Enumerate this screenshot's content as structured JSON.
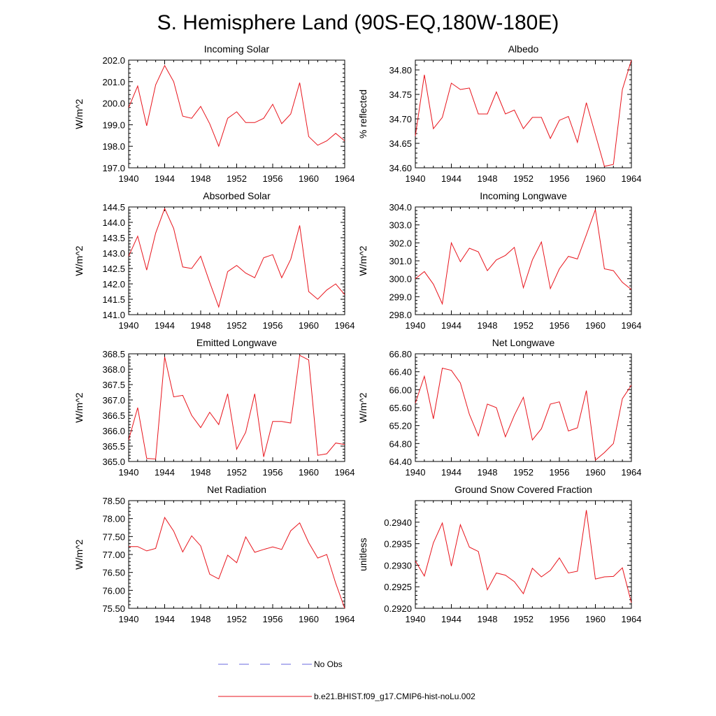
{
  "figure": {
    "title": "S. Hemisphere Land (90S-EQ,180W-180E)"
  },
  "colors": {
    "model_line": "#e8141c",
    "obs_line": "#6a6adf",
    "axis": "#000000"
  },
  "legend": {
    "obs_label": "No Obs",
    "model_label": "b.e21.BHIST.f09_g17.CMIP6-hist-noLu.002"
  },
  "chart_data": [
    {
      "type": "line",
      "title": "Incoming Solar",
      "xlabel": "",
      "ylabel": "W/m^2",
      "xlim": [
        1940,
        1964
      ],
      "ylim": [
        197.0,
        202.0
      ],
      "xticks": [
        "1940",
        "1944",
        "1948",
        "1952",
        "1956",
        "1960",
        "1964"
      ],
      "yticks": [
        "197.0",
        "198.0",
        "199.0",
        "200.0",
        "201.0",
        "202.0"
      ],
      "grid": false,
      "x": [
        1940,
        1941,
        1942,
        1943,
        1944,
        1945,
        1946,
        1947,
        1948,
        1949,
        1950,
        1951,
        1952,
        1953,
        1954,
        1955,
        1956,
        1957,
        1958,
        1959,
        1960,
        1961,
        1962,
        1963,
        1964
      ],
      "series": [
        {
          "values": [
            199.8,
            200.8,
            198.95,
            200.85,
            201.75,
            201.0,
            199.4,
            199.3,
            199.85,
            199.05,
            198.0,
            199.3,
            199.6,
            199.1,
            199.1,
            199.3,
            199.95,
            199.05,
            199.5,
            200.95,
            198.45,
            198.05,
            198.25,
            198.6,
            198.25
          ]
        }
      ]
    },
    {
      "type": "line",
      "title": "Albedo",
      "xlabel": "",
      "ylabel": "% reflected",
      "xlim": [
        1940,
        1964
      ],
      "ylim": [
        34.6,
        34.82
      ],
      "xticks": [
        "1940",
        "1944",
        "1948",
        "1952",
        "1956",
        "1960",
        "1964"
      ],
      "yticks": [
        "34.60",
        "34.65",
        "34.70",
        "34.75",
        "34.80"
      ],
      "grid": false,
      "x": [
        1940,
        1941,
        1942,
        1943,
        1944,
        1945,
        1946,
        1947,
        1948,
        1949,
        1950,
        1951,
        1952,
        1953,
        1954,
        1955,
        1956,
        1957,
        1958,
        1959,
        1960,
        1961,
        1962,
        1963,
        1964
      ],
      "series": [
        {
          "values": [
            34.665,
            34.79,
            34.68,
            34.703,
            34.773,
            34.76,
            34.763,
            34.71,
            34.71,
            34.755,
            34.71,
            34.718,
            34.68,
            34.703,
            34.703,
            34.66,
            34.697,
            34.705,
            34.652,
            34.733,
            34.668,
            34.603,
            34.607,
            34.76,
            34.82
          ]
        }
      ]
    },
    {
      "type": "line",
      "title": "Absorbed Solar",
      "xlabel": "",
      "ylabel": "W/m^2",
      "xlim": [
        1940,
        1964
      ],
      "ylim": [
        141.0,
        144.5
      ],
      "xticks": [
        "1940",
        "1944",
        "1948",
        "1952",
        "1956",
        "1960",
        "1964"
      ],
      "yticks": [
        "141.0",
        "141.5",
        "142.0",
        "142.5",
        "143.0",
        "143.5",
        "144.0",
        "144.5"
      ],
      "grid": false,
      "x": [
        1940,
        1941,
        1942,
        1943,
        1944,
        1945,
        1946,
        1947,
        1948,
        1949,
        1950,
        1951,
        1952,
        1953,
        1954,
        1955,
        1956,
        1957,
        1958,
        1959,
        1960,
        1961,
        1962,
        1963,
        1964
      ],
      "series": [
        {
          "values": [
            142.9,
            143.55,
            142.45,
            143.65,
            144.45,
            143.8,
            142.55,
            142.5,
            142.9,
            142.05,
            141.25,
            142.4,
            142.6,
            142.35,
            142.2,
            142.85,
            142.95,
            142.2,
            142.8,
            143.9,
            141.75,
            141.5,
            141.8,
            142.0,
            141.65
          ]
        }
      ]
    },
    {
      "type": "line",
      "title": "Incoming Longwave",
      "xlabel": "",
      "ylabel": "W/m^2",
      "xlim": [
        1940,
        1964
      ],
      "ylim": [
        298.0,
        304.0
      ],
      "xticks": [
        "1940",
        "1944",
        "1948",
        "1952",
        "1956",
        "1960",
        "1964"
      ],
      "yticks": [
        "298.0",
        "299.0",
        "300.0",
        "301.0",
        "302.0",
        "303.0",
        "304.0"
      ],
      "grid": false,
      "x": [
        1940,
        1941,
        1942,
        1943,
        1944,
        1945,
        1946,
        1947,
        1948,
        1949,
        1950,
        1951,
        1952,
        1953,
        1954,
        1955,
        1956,
        1957,
        1958,
        1959,
        1960,
        1961,
        1962,
        1963,
        1964
      ],
      "series": [
        {
          "values": [
            300.0,
            300.4,
            299.7,
            298.6,
            302.0,
            300.95,
            301.7,
            301.5,
            300.45,
            301.05,
            301.3,
            301.75,
            299.5,
            301.05,
            302.05,
            299.45,
            300.55,
            301.25,
            301.1,
            302.45,
            303.85,
            300.55,
            300.45,
            299.8,
            299.4
          ]
        }
      ]
    },
    {
      "type": "line",
      "title": "Emitted Longwave",
      "xlabel": "",
      "ylabel": "W/m^2",
      "xlim": [
        1940,
        1964
      ],
      "ylim": [
        365.0,
        368.5
      ],
      "xticks": [
        "1940",
        "1944",
        "1948",
        "1952",
        "1956",
        "1960",
        "1964"
      ],
      "yticks": [
        "365.0",
        "365.5",
        "366.0",
        "366.5",
        "367.0",
        "367.5",
        "368.0",
        "368.5"
      ],
      "grid": false,
      "x": [
        1940,
        1941,
        1942,
        1943,
        1944,
        1945,
        1946,
        1947,
        1948,
        1949,
        1950,
        1951,
        1952,
        1953,
        1954,
        1955,
        1956,
        1957,
        1958,
        1959,
        1960,
        1961,
        1962,
        1963,
        1964
      ],
      "series": [
        {
          "values": [
            365.7,
            366.75,
            365.1,
            365.08,
            368.4,
            367.1,
            367.15,
            366.5,
            366.1,
            366.6,
            366.2,
            367.2,
            365.4,
            365.95,
            367.2,
            365.15,
            366.3,
            366.3,
            366.25,
            368.45,
            368.3,
            365.2,
            365.25,
            365.6,
            365.55
          ]
        }
      ]
    },
    {
      "type": "line",
      "title": "Net Longwave",
      "xlabel": "",
      "ylabel": "W/m^2",
      "xlim": [
        1940,
        1964
      ],
      "ylim": [
        64.4,
        66.8
      ],
      "xticks": [
        "1940",
        "1944",
        "1948",
        "1952",
        "1956",
        "1960",
        "1964"
      ],
      "yticks": [
        "64.40",
        "64.80",
        "65.20",
        "65.60",
        "66.00",
        "66.40",
        "66.80"
      ],
      "grid": false,
      "x": [
        1940,
        1941,
        1942,
        1943,
        1944,
        1945,
        1946,
        1947,
        1948,
        1949,
        1950,
        1951,
        1952,
        1953,
        1954,
        1955,
        1956,
        1957,
        1958,
        1959,
        1960,
        1961,
        1962,
        1963,
        1964
      ],
      "series": [
        {
          "values": [
            65.7,
            66.3,
            65.35,
            66.48,
            66.43,
            66.15,
            65.45,
            64.97,
            65.68,
            65.6,
            64.95,
            65.43,
            65.83,
            64.88,
            65.13,
            65.68,
            65.73,
            65.08,
            65.15,
            65.98,
            64.43,
            64.6,
            64.8,
            65.8,
            66.1
          ]
        }
      ]
    },
    {
      "type": "line",
      "title": "Net Radiation",
      "xlabel": "",
      "ylabel": "W/m^2",
      "xlim": [
        1940,
        1964
      ],
      "ylim": [
        75.5,
        78.5
      ],
      "xticks": [
        "1940",
        "1944",
        "1948",
        "1952",
        "1956",
        "1960",
        "1964"
      ],
      "yticks": [
        "75.50",
        "76.00",
        "76.50",
        "77.00",
        "77.50",
        "78.00",
        "78.50"
      ],
      "grid": false,
      "x": [
        1940,
        1941,
        1942,
        1943,
        1944,
        1945,
        1946,
        1947,
        1948,
        1949,
        1950,
        1951,
        1952,
        1953,
        1954,
        1955,
        1956,
        1957,
        1958,
        1959,
        1960,
        1961,
        1962,
        1963,
        1964
      ],
      "series": [
        {
          "values": [
            77.22,
            77.22,
            77.1,
            77.17,
            78.03,
            77.65,
            77.07,
            77.52,
            77.24,
            76.45,
            76.32,
            76.98,
            76.77,
            77.49,
            77.06,
            77.14,
            77.21,
            77.14,
            77.66,
            77.88,
            77.33,
            76.9,
            77.0,
            76.2,
            75.5
          ]
        }
      ]
    },
    {
      "type": "line",
      "title": "Ground Snow Covered Fraction",
      "xlabel": "",
      "ylabel": "unitless",
      "xlim": [
        1940,
        1964
      ],
      "ylim": [
        0.292,
        0.2945
      ],
      "xticks": [
        "1940",
        "1944",
        "1948",
        "1952",
        "1956",
        "1960",
        "1964"
      ],
      "yticks": [
        "0.2920",
        "0.2925",
        "0.2930",
        "0.2935",
        "0.2940"
      ],
      "grid": false,
      "x": [
        1940,
        1941,
        1942,
        1943,
        1944,
        1945,
        1946,
        1947,
        1948,
        1949,
        1950,
        1951,
        1952,
        1953,
        1954,
        1955,
        1956,
        1957,
        1958,
        1959,
        1960,
        1961,
        1962,
        1963,
        1964
      ],
      "series": [
        {
          "values": [
            0.2931,
            0.29275,
            0.29352,
            0.29398,
            0.29298,
            0.29394,
            0.29342,
            0.29332,
            0.29243,
            0.29282,
            0.29277,
            0.29262,
            0.29234,
            0.29293,
            0.29273,
            0.29288,
            0.29317,
            0.29282,
            0.29286,
            0.29428,
            0.29268,
            0.29273,
            0.29274,
            0.29294,
            0.29213
          ]
        }
      ]
    }
  ]
}
